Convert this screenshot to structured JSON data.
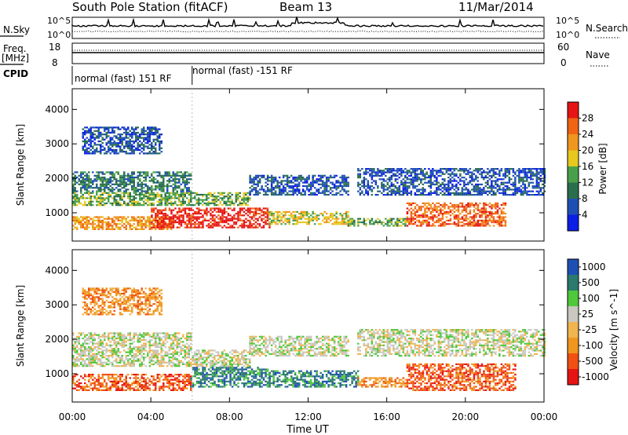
{
  "header": {
    "station": "South Pole Station (fitACF)",
    "beam": "Beam 13",
    "date": "11/Mar/2014"
  },
  "sky_panel": {
    "left_label": "N.Sky",
    "right_label": "N.Search",
    "left_ticks": [
      "10^5",
      "10^0"
    ],
    "right_ticks": [
      "10^5",
      "10^0"
    ]
  },
  "freq_panel": {
    "left_label_1": "Freq.",
    "left_label_2": "[MHz]",
    "right_label": "Nave",
    "left_ticks": [
      "18",
      "8"
    ],
    "right_ticks": [
      "60",
      "0"
    ]
  },
  "cpid": {
    "label": "CPID",
    "segments": [
      {
        "start_hour": 0,
        "text": "normal (fast) 151 RF"
      },
      {
        "start_hour": 6.1,
        "text": "normal (fast) -151 RF"
      }
    ]
  },
  "colors": {
    "power": [
      "#0a1ee6",
      "#1e50b4",
      "#2a6e4e",
      "#4aa04a",
      "#e6c81e",
      "#f0961e",
      "#f06414",
      "#e61414"
    ],
    "velocity": [
      "#e61414",
      "#f05014",
      "#f0961e",
      "#f0b450",
      "#c8c8c0",
      "#50c83c",
      "#2a7a6e",
      "#1e50b4"
    ]
  },
  "chart_data": [
    {
      "type": "heatmap",
      "title": "",
      "xlabel": "Time UT",
      "ylabel": "Slant Range [km]",
      "x_ticks": [
        "00:00",
        "04:00",
        "08:00",
        "12:00",
        "16:00",
        "20:00",
        "00:00"
      ],
      "xlim": [
        0,
        24
      ],
      "y_ticks": [
        "1000",
        "2000",
        "3000",
        "4000"
      ],
      "ylim": [
        180,
        4600
      ],
      "colorbar": {
        "label": "Power [dB]",
        "ticks": [
          "4",
          "8",
          "12",
          "16",
          "20",
          "24",
          "28"
        ],
        "range": [
          0,
          32
        ]
      },
      "echo_regions": [
        {
          "t_start": 0,
          "t_end": 5,
          "r_min": 500,
          "r_max": 900,
          "value": 22
        },
        {
          "t_start": 4,
          "t_end": 10,
          "r_min": 550,
          "r_max": 1150,
          "value": 28
        },
        {
          "t_start": 10,
          "t_end": 14,
          "r_min": 650,
          "r_max": 1050,
          "value": 18
        },
        {
          "t_start": 14,
          "t_end": 17,
          "r_min": 600,
          "r_max": 850,
          "value": 14
        },
        {
          "t_start": 17,
          "t_end": 22,
          "r_min": 600,
          "r_max": 1300,
          "value": 24
        },
        {
          "t_start": 0,
          "t_end": 9,
          "r_min": 1200,
          "r_max": 1600,
          "value": 14
        },
        {
          "t_start": 0,
          "t_end": 6,
          "r_min": 1600,
          "r_max": 2200,
          "value": 8
        },
        {
          "t_start": 9,
          "t_end": 14,
          "r_min": 1500,
          "r_max": 2100,
          "value": 6
        },
        {
          "t_start": 14.5,
          "t_end": 24,
          "r_min": 1500,
          "r_max": 2300,
          "value": 7
        },
        {
          "t_start": 0.5,
          "t_end": 4.5,
          "r_min": 2700,
          "r_max": 3500,
          "value": 4
        }
      ]
    },
    {
      "type": "heatmap",
      "title": "",
      "xlabel": "Time UT",
      "ylabel": "Slant Range [km]",
      "x_ticks": [
        "00:00",
        "04:00",
        "08:00",
        "12:00",
        "16:00",
        "20:00",
        "00:00"
      ],
      "xlim": [
        0,
        24
      ],
      "y_ticks": [
        "1000",
        "2000",
        "3000",
        "4000"
      ],
      "ylim": [
        180,
        4600
      ],
      "colorbar": {
        "label": "Velocity [m s^-1]",
        "ticks": [
          "1000",
          "500",
          "100",
          "25",
          "-25",
          "-100",
          "-500",
          "-1000"
        ]
      },
      "echo_regions": [
        {
          "t_start": 0,
          "t_end": 6,
          "r_min": 500,
          "r_max": 1000,
          "value": -300
        },
        {
          "t_start": 6,
          "t_end": 10,
          "r_min": 600,
          "r_max": 1200,
          "value": 150
        },
        {
          "t_start": 10,
          "t_end": 14.5,
          "r_min": 600,
          "r_max": 1100,
          "value": 200
        },
        {
          "t_start": 14.5,
          "t_end": 17,
          "r_min": 600,
          "r_max": 900,
          "value": -50
        },
        {
          "t_start": 17,
          "t_end": 22.5,
          "r_min": 500,
          "r_max": 1300,
          "value": -300
        },
        {
          "t_start": 0,
          "t_end": 9,
          "r_min": 1200,
          "r_max": 1700,
          "value": 0
        },
        {
          "t_start": 0,
          "t_end": 6,
          "r_min": 1700,
          "r_max": 2200,
          "value": 0
        },
        {
          "t_start": 9,
          "t_end": 14,
          "r_min": 1500,
          "r_max": 2100,
          "value": 0
        },
        {
          "t_start": 14.5,
          "t_end": 24,
          "r_min": 1500,
          "r_max": 2300,
          "value": 0
        },
        {
          "t_start": 0.5,
          "t_end": 4.5,
          "r_min": 2700,
          "r_max": 3500,
          "value": -30
        }
      ]
    }
  ]
}
